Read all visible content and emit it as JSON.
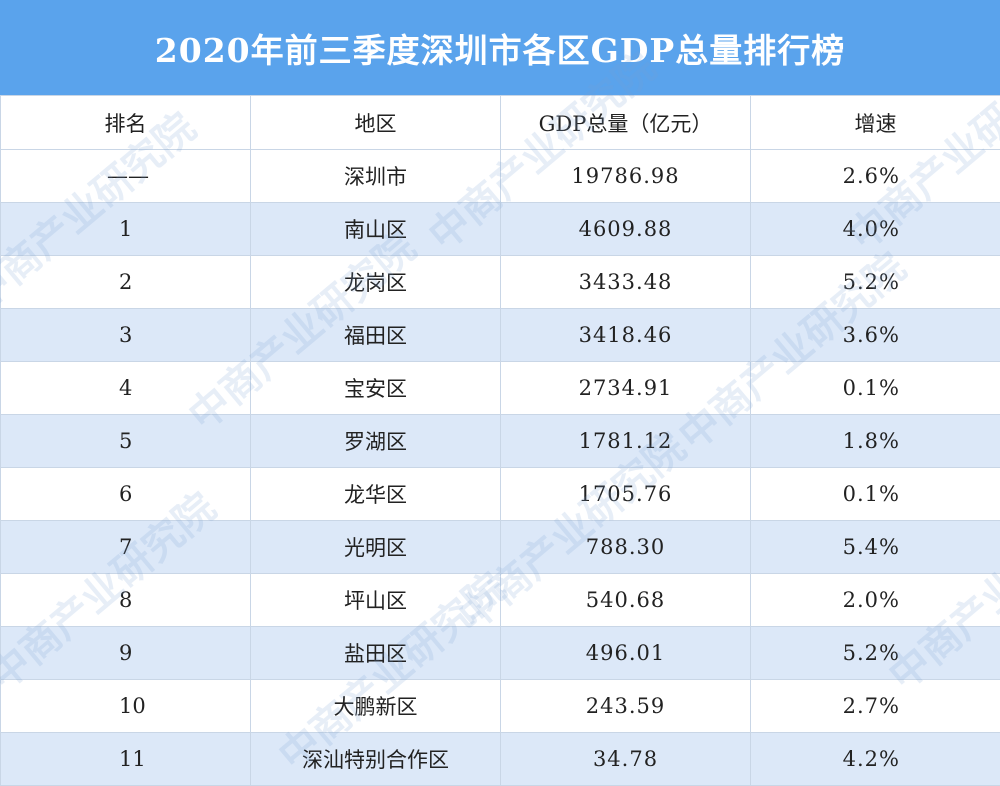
{
  "title": "2020年前三季度深圳市各区GDP总量排行榜",
  "headers": [
    "排名",
    "地区",
    "GDP总量（亿元）",
    "增速"
  ],
  "rows": [
    {
      "rank": "——",
      "district": "深圳市",
      "gdp": "19786.98",
      "growth": "2.6%"
    },
    {
      "rank": "1",
      "district": "南山区",
      "gdp": "4609.88",
      "growth": "4.0%"
    },
    {
      "rank": "2",
      "district": "龙岗区",
      "gdp": "3433.48",
      "growth": "5.2%"
    },
    {
      "rank": "3",
      "district": "福田区",
      "gdp": "3418.46",
      "growth": "3.6%"
    },
    {
      "rank": "4",
      "district": "宝安区",
      "gdp": "2734.91",
      "growth": "0.1%"
    },
    {
      "rank": "5",
      "district": "罗湖区",
      "gdp": "1781.12",
      "growth": "1.8%"
    },
    {
      "rank": "6",
      "district": "龙华区",
      "gdp": "1705.76",
      "growth": "0.1%"
    },
    {
      "rank": "7",
      "district": "光明区",
      "gdp": "788.30",
      "growth": "5.4%"
    },
    {
      "rank": "8",
      "district": "坪山区",
      "gdp": "540.68",
      "growth": "2.0%"
    },
    {
      "rank": "9",
      "district": "盐田区",
      "gdp": "496.01",
      "growth": "5.2%"
    },
    {
      "rank": "10",
      "district": "大鹏新区",
      "gdp": "243.59",
      "growth": "2.7%"
    },
    {
      "rank": "11",
      "district": "深汕特别合作区",
      "gdp": "34.78",
      "growth": "4.2%"
    }
  ],
  "watermark": "中商产业研究院",
  "colors": {
    "title_bg": "#5aa3ec",
    "stripe": "#dce8f8",
    "border": "#c9d6e6"
  }
}
